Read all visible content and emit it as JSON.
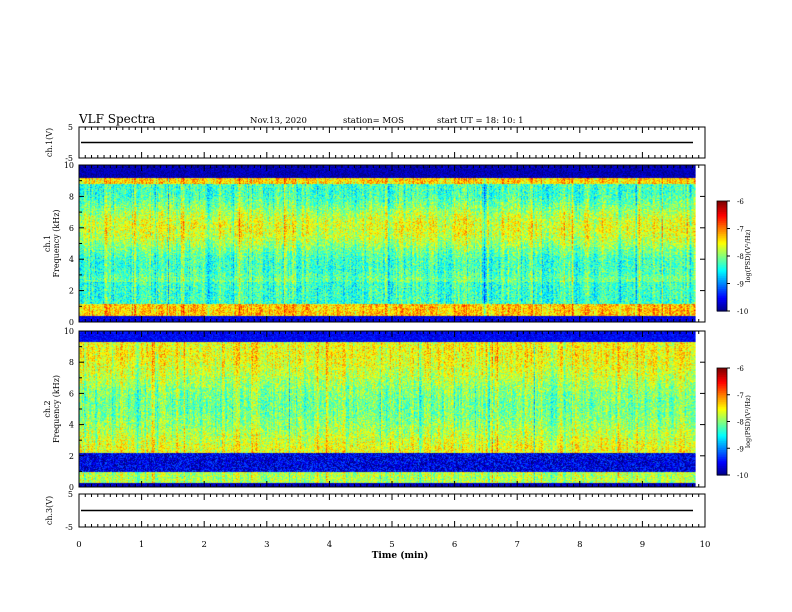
{
  "header": {
    "title": "VLF Spectra",
    "date": "Nov.13, 2020",
    "station": "station= MOS",
    "start": "start  UT =   18: 10: 1"
  },
  "chart_data": [
    {
      "type": "line",
      "panel": "ch1-waveform",
      "ylabel": "ch.1(V)",
      "ylim": [
        -5,
        5
      ],
      "yticks": [
        "5",
        "-5"
      ],
      "x_range": [
        0,
        10
      ],
      "trace_level": 0
    },
    {
      "type": "heatmap",
      "panel": "ch1-spectrogram",
      "ylabel_channel": "ch.1",
      "ylabel": "Frequency  (kHz)",
      "ylim": [
        0,
        10
      ],
      "yticks": [
        "0",
        "2",
        "4",
        "6",
        "8",
        "10"
      ],
      "x_range": [
        0,
        9.85
      ],
      "colorbar": {
        "label": "log(PSD)(V²/Hz)",
        "range": [
          -10,
          -6
        ],
        "ticks": [
          "-6",
          "-7",
          "-8",
          "-9",
          "-10"
        ]
      }
    },
    {
      "type": "heatmap",
      "panel": "ch2-spectrogram",
      "ylabel_channel": "ch.2",
      "ylabel": "Frequency  (kHz)",
      "ylim": [
        0,
        10
      ],
      "yticks": [
        "0",
        "2",
        "4",
        "6",
        "8",
        "10"
      ],
      "x_range": [
        0,
        9.85
      ],
      "colorbar": {
        "label": "log(PSD)(V²/Hz)",
        "range": [
          -10,
          -6
        ],
        "ticks": [
          "-6",
          "-7",
          "-8",
          "-9",
          "-10"
        ]
      }
    },
    {
      "type": "line",
      "panel": "ch3-waveform",
      "ylabel": "ch.3(V)",
      "ylim": [
        -5,
        5
      ],
      "yticks": [
        "5",
        "-5"
      ],
      "x_range": [
        0,
        10
      ],
      "trace_level": 0
    }
  ],
  "xaxis": {
    "label": "Time  (min)",
    "ticks": [
      "0",
      "1",
      "2",
      "3",
      "4",
      "5",
      "6",
      "7",
      "8",
      "9",
      "10"
    ],
    "range": [
      0,
      10
    ]
  }
}
